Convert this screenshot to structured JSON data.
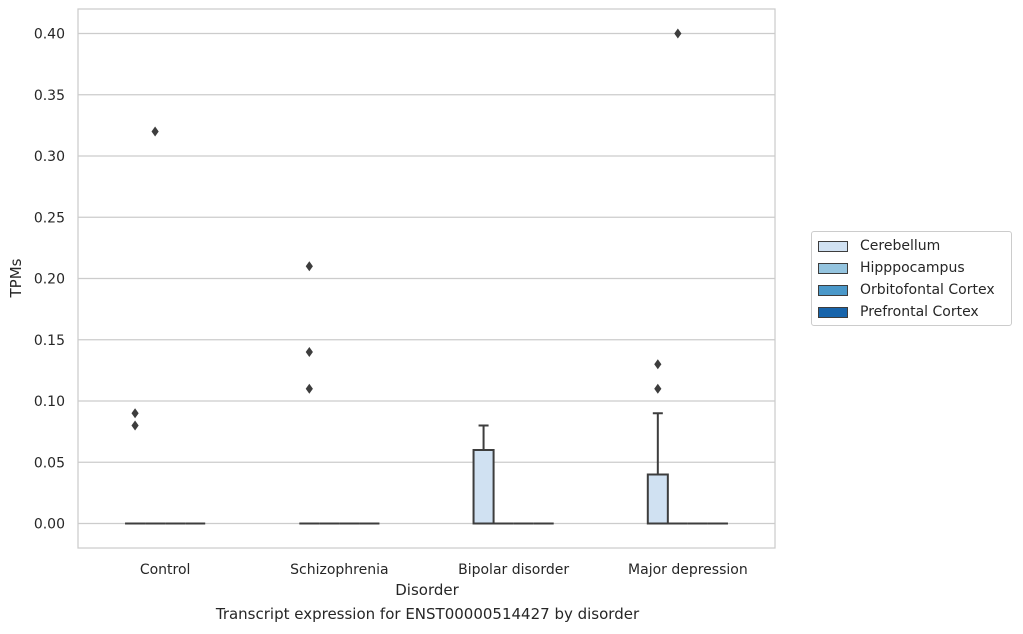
{
  "chart_data": {
    "type": "box",
    "caption": "Transcript expression for ENST00000514427 by disorder",
    "xlabel": "Disorder",
    "ylabel": "TPMs",
    "ylim": [
      -0.02,
      0.42
    ],
    "yticks": [
      "0.00",
      "0.05",
      "0.10",
      "0.15",
      "0.20",
      "0.25",
      "0.30",
      "0.35",
      "0.40"
    ],
    "grid": "horizontal",
    "legend_position": "right, outside plot",
    "categories": [
      "Control",
      "Schizophrenia",
      "Bipolar disorder",
      "Major depression"
    ],
    "series": [
      {
        "name": "Cerebellum",
        "color": "#d0e1f2",
        "boxes": [
          {
            "q1": 0,
            "median": 0,
            "q3": 0,
            "whislo": 0,
            "whishi": 0,
            "fliers": [
              0.08,
              0.09
            ]
          },
          {
            "q1": 0,
            "median": 0,
            "q3": 0,
            "whislo": 0,
            "whishi": 0,
            "fliers": [
              0.11,
              0.14,
              0.21
            ]
          },
          {
            "q1": 0,
            "median": 0,
            "q3": 0.06,
            "whislo": 0,
            "whishi": 0.08,
            "fliers": []
          },
          {
            "q1": 0,
            "median": 0,
            "q3": 0.04,
            "whislo": 0,
            "whishi": 0.09,
            "fliers": [
              0.11,
              0.13
            ]
          }
        ]
      },
      {
        "name": "Hipppocampus",
        "color": "#94c4df",
        "boxes": [
          {
            "q1": 0,
            "median": 0,
            "q3": 0,
            "whislo": 0,
            "whishi": 0,
            "fliers": [
              0.32
            ]
          },
          {
            "q1": 0,
            "median": 0,
            "q3": 0,
            "whislo": 0,
            "whishi": 0,
            "fliers": []
          },
          {
            "q1": 0,
            "median": 0,
            "q3": 0,
            "whislo": 0,
            "whishi": 0,
            "fliers": []
          },
          {
            "q1": 0,
            "median": 0,
            "q3": 0,
            "whislo": 0,
            "whishi": 0,
            "fliers": [
              0.4
            ]
          }
        ]
      },
      {
        "name": "Orbitofontal Cortex",
        "color": "#4a98c9",
        "boxes": [
          {
            "q1": 0,
            "median": 0,
            "q3": 0,
            "whislo": 0,
            "whishi": 0,
            "fliers": []
          },
          {
            "q1": 0,
            "median": 0,
            "q3": 0,
            "whislo": 0,
            "whishi": 0,
            "fliers": []
          },
          {
            "q1": 0,
            "median": 0,
            "q3": 0,
            "whislo": 0,
            "whishi": 0,
            "fliers": []
          },
          {
            "q1": 0,
            "median": 0,
            "q3": 0,
            "whislo": 0,
            "whishi": 0,
            "fliers": []
          }
        ]
      },
      {
        "name": "Prefrontal Cortex",
        "color": "#1764ab",
        "boxes": [
          {
            "q1": 0,
            "median": 0,
            "q3": 0,
            "whislo": 0,
            "whishi": 0,
            "fliers": []
          },
          {
            "q1": 0,
            "median": 0,
            "q3": 0,
            "whislo": 0,
            "whishi": 0,
            "fliers": []
          },
          {
            "q1": 0,
            "median": 0,
            "q3": 0,
            "whislo": 0,
            "whishi": 0,
            "fliers": []
          },
          {
            "q1": 0,
            "median": 0,
            "q3": 0,
            "whislo": 0,
            "whishi": 0,
            "fliers": []
          }
        ]
      }
    ]
  }
}
